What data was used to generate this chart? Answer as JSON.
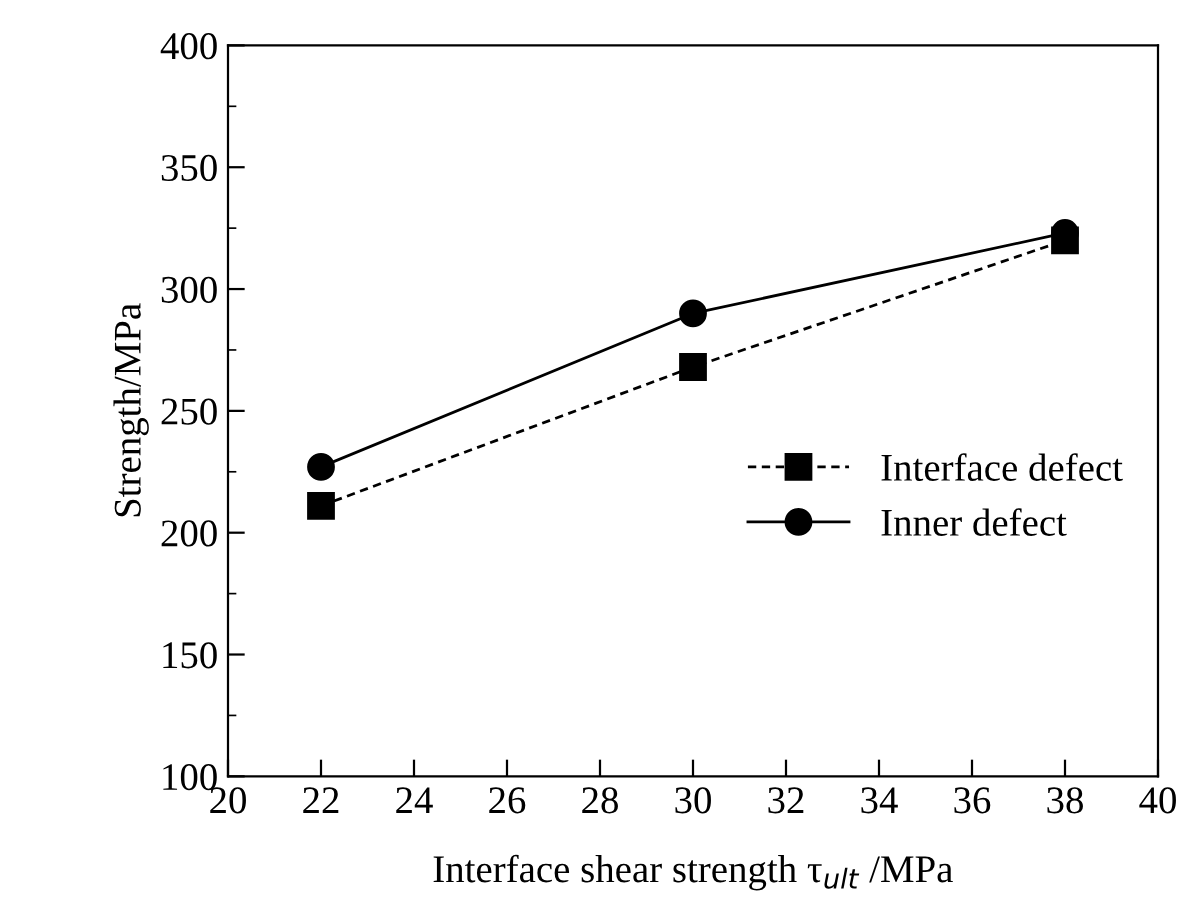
{
  "chart_data": {
    "type": "line",
    "xlabel": "Interface shear strength τ$_{ult}$ /MPa",
    "ylabel": "Strength/MPa",
    "x": [
      22,
      30,
      38
    ],
    "series": [
      {
        "name": "Interface defect",
        "color": "#000000",
        "marker": "square",
        "line_style": "dashed",
        "values": [
          211,
          268,
          320
        ]
      },
      {
        "name": "Inner defect",
        "color": "#000000",
        "marker": "circle",
        "line_style": "solid",
        "values": [
          227,
          290,
          323
        ]
      }
    ],
    "xlim": [
      20,
      40
    ],
    "xticks": [
      20,
      22,
      24,
      26,
      28,
      30,
      32,
      34,
      36,
      38,
      40
    ],
    "ylim": [
      100,
      400
    ],
    "yticks": [
      100,
      150,
      200,
      250,
      300,
      350,
      400
    ],
    "grid": false,
    "legend": "right"
  }
}
